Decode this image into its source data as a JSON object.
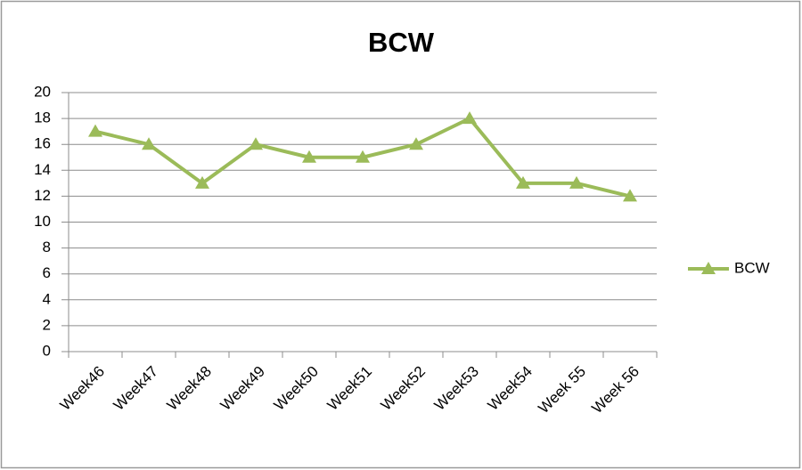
{
  "chart_data": {
    "type": "line",
    "title": "BCW",
    "categories": [
      "Week46",
      "Week47",
      "Week48",
      "Week49",
      "Week50",
      "Week51",
      "Week52",
      "Week53",
      "Week54",
      "Week 55",
      "Week 56"
    ],
    "series": [
      {
        "name": "BCW",
        "color": "#9bbb59",
        "values": [
          17,
          16,
          13,
          16,
          15,
          15,
          16,
          18,
          13,
          13,
          12
        ]
      }
    ],
    "ylim": [
      0,
      20
    ],
    "yticks": [
      0,
      2,
      4,
      6,
      8,
      10,
      12,
      14,
      16,
      18,
      20
    ],
    "grid": true,
    "legend": "right"
  }
}
